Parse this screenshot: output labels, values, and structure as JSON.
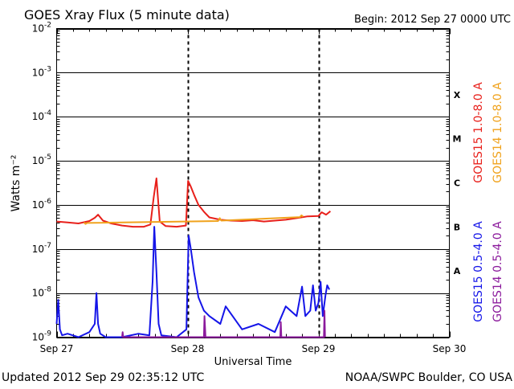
{
  "chart_data": {
    "type": "line",
    "title": "GOES Xray Flux (5 minute data)",
    "begin_label": "Begin:  2012 Sep 27 0000 UTC",
    "xlabel": "Universal Time",
    "ylabel": "Watts m⁻²",
    "y_scale": "log",
    "ylim": [
      1e-09,
      0.01
    ],
    "xlim": [
      0,
      72
    ],
    "x_unit_note": "hours after 2012 Sep 27 00:00 UTC",
    "x_ticks": [
      {
        "x": 0,
        "label": "Sep 27"
      },
      {
        "x": 24,
        "label": "Sep 28"
      },
      {
        "x": 48,
        "label": "Sep 29"
      },
      {
        "x": 72,
        "label": "Sep 30"
      }
    ],
    "y_ticks": [
      {
        "v": 0.01,
        "base": "10",
        "exp": "-2"
      },
      {
        "v": 0.001,
        "base": "10",
        "exp": "-3"
      },
      {
        "v": 0.0001,
        "base": "10",
        "exp": "-4"
      },
      {
        "v": 1e-05,
        "base": "10",
        "exp": "-5"
      },
      {
        "v": 1e-06,
        "base": "10",
        "exp": "-6"
      },
      {
        "v": 1e-07,
        "base": "10",
        "exp": "-7"
      },
      {
        "v": 1e-08,
        "base": "10",
        "exp": "-8"
      },
      {
        "v": 1e-09,
        "base": "10",
        "exp": "-9"
      }
    ],
    "flare_classes": [
      {
        "label": "X",
        "v": 0.000316
      },
      {
        "label": "M",
        "v": 3.16e-05
      },
      {
        "label": "C",
        "v": 3.16e-06
      },
      {
        "label": "B",
        "v": 3.16e-07
      },
      {
        "label": "A",
        "v": 3.16e-08
      }
    ],
    "grid": "horizontal decades",
    "series": [
      {
        "name": "GOES15 1.0-8.0 A",
        "color": "#e8201b",
        "x": [
          0,
          2,
          4,
          6,
          7,
          7.6,
          8.5,
          10,
          12,
          14,
          16,
          17.2,
          17.8,
          18.3,
          18.9,
          20,
          22,
          23.7,
          24.1,
          24.6,
          25.2,
          26,
          27,
          28,
          30,
          32,
          34,
          36,
          38,
          40,
          42,
          44,
          46,
          48,
          48.6,
          49.4,
          50.2
        ],
        "y": [
          4.2e-07,
          4e-07,
          3.8e-07,
          4.3e-07,
          5.1e-07,
          6e-07,
          4.4e-07,
          3.8e-07,
          3.4e-07,
          3.2e-07,
          3.2e-07,
          3.6e-07,
          1.5e-06,
          4e-06,
          4.2e-07,
          3.3e-07,
          3.2e-07,
          3.4e-07,
          3.5e-06,
          2.6e-06,
          1.7e-06,
          1e-06,
          7e-07,
          5.2e-07,
          4.6e-07,
          4.4e-07,
          4.3e-07,
          4.5e-07,
          4.2e-07,
          4.4e-07,
          4.6e-07,
          5e-07,
          5.5e-07,
          5.6e-07,
          6.8e-07,
          6e-07,
          7.2e-07
        ]
      },
      {
        "name": "GOES14 1.0-8.0 A",
        "color": "#f0a21c",
        "x": [
          5,
          5.3,
          5.6,
          29.6,
          29.9,
          30.2,
          44.6,
          44.9,
          45.2
        ],
        "y": [
          4e-07,
          3.7e-07,
          3.9e-07,
          4.3e-07,
          5e-07,
          4.4e-07,
          5.3e-07,
          5.8e-07,
          5.4e-07
        ]
      },
      {
        "name": "GOES15 0.5-4.0 A",
        "color": "#1515e8",
        "x": [
          0,
          0.3,
          0.6,
          1,
          2,
          4,
          6,
          7,
          7.3,
          7.6,
          8,
          9,
          12,
          15,
          17,
          17.6,
          17.9,
          18.3,
          18.7,
          19.2,
          22,
          23.8,
          24.2,
          24.6,
          25.2,
          26,
          27,
          28,
          30,
          31,
          34,
          37,
          40,
          42,
          44,
          45,
          45.6,
          46.5,
          47,
          47.5,
          48,
          48.4,
          48.8,
          49.3,
          49.6,
          50
        ],
        "y": [
          2e-09,
          7e-09,
          1.5e-09,
          1.1e-09,
          1.2e-09,
          1e-09,
          1.3e-09,
          2e-09,
          1e-08,
          2e-09,
          1.2e-09,
          1e-09,
          1e-09,
          1.2e-09,
          1.1e-09,
          1.8e-08,
          3.2e-07,
          3e-08,
          2e-09,
          1.1e-09,
          1e-09,
          1.5e-09,
          2e-07,
          1e-07,
          3e-08,
          8e-09,
          4e-09,
          3e-09,
          2e-09,
          5e-09,
          1.5e-09,
          2e-09,
          1.3e-09,
          5e-09,
          3e-09,
          1.4e-08,
          3e-09,
          4e-09,
          1.5e-08,
          4e-09,
          6e-09,
          1.8e-08,
          3e-09,
          9e-09,
          1.5e-08,
          1.2e-08
        ]
      },
      {
        "name": "GOES14 0.5-4.0 A",
        "color": "#8b1a9c",
        "x": [
          12,
          12.1,
          12.2,
          27,
          27.1,
          27.3,
          41,
          41.1,
          41.2,
          49,
          49.1,
          49.2
        ],
        "y": [
          1e-09,
          1.3e-09,
          1e-09,
          1e-09,
          3e-09,
          1e-09,
          1e-09,
          2.2e-09,
          1e-09,
          1e-09,
          4e-09,
          1e-09
        ]
      }
    ]
  },
  "footer": {
    "updated": "Updated 2012 Sep 29 02:35:12 UTC",
    "source": "NOAA/SWPC Boulder, CO USA"
  }
}
